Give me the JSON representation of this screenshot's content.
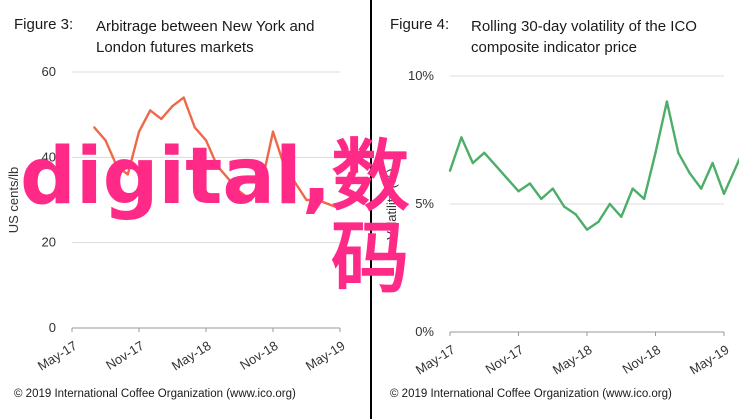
{
  "chart_data": [
    {
      "type": "line",
      "figure_label": "Figure 3:",
      "title_line1": "Arbitrage between New York and",
      "title_line2": "London futures markets",
      "ylabel": "US cents/lb",
      "ylim": [
        0,
        60
      ],
      "yticks": [
        "0",
        "20",
        "40",
        "60"
      ],
      "xticks": [
        "May-17",
        "Nov-17",
        "May-18",
        "Nov-18",
        "May-19"
      ],
      "x": [
        "2017-07",
        "2017-08",
        "2017-09",
        "2017-10",
        "2017-11",
        "2017-12",
        "2018-01",
        "2018-02",
        "2018-03",
        "2018-04",
        "2018-05",
        "2018-06",
        "2018-07",
        "2018-08",
        "2018-09",
        "2018-10",
        "2018-11",
        "2018-12",
        "2019-01",
        "2019-02",
        "2019-03",
        "2019-04",
        "2019-05"
      ],
      "series": [
        {
          "color": "#f0684a",
          "values": [
            47,
            44,
            38,
            36,
            46,
            51,
            49,
            52,
            54,
            47,
            44,
            38,
            35,
            32,
            30,
            34,
            46,
            38,
            34,
            30,
            30,
            29,
            28
          ]
        }
      ],
      "credit": "© 2019 International Coffee Organization (www.ico.org)"
    },
    {
      "type": "line",
      "figure_label": "Figure 4:",
      "title_line1": "Rolling 30-day volatility of the ICO",
      "title_line2": "composite indicator price",
      "ylabel": "Volatility (%)",
      "ylim": [
        0,
        10
      ],
      "yticks": [
        "0%",
        "5%",
        "10%"
      ],
      "xticks": [
        "May-17",
        "Nov-17",
        "May-18",
        "Nov-18",
        "May-19"
      ],
      "x": [
        "2017-05",
        "2017-06",
        "2017-07",
        "2017-08",
        "2017-09",
        "2017-10",
        "2017-11",
        "2017-12",
        "2018-01",
        "2018-02",
        "2018-03",
        "2018-04",
        "2018-05",
        "2018-06",
        "2018-07",
        "2018-08",
        "2018-09",
        "2018-10",
        "2018-11",
        "2018-12",
        "2019-01",
        "2019-02",
        "2019-03",
        "2019-04",
        "2019-05",
        "2019-06",
        "2019-07"
      ],
      "series": [
        {
          "color": "#4cae69",
          "values": [
            6.3,
            7.6,
            6.6,
            7.0,
            6.5,
            6.0,
            5.5,
            5.8,
            5.2,
            5.6,
            4.9,
            4.6,
            4.0,
            4.3,
            5.0,
            4.5,
            5.6,
            5.2,
            7.0,
            9.0,
            7.0,
            6.2,
            5.6,
            6.6,
            5.4,
            6.4,
            7.4
          ]
        }
      ],
      "credit": "© 2019 International Coffee Organization (www.ico.org)"
    }
  ],
  "overlay": {
    "line1": "digital,数",
    "line2": "码"
  }
}
